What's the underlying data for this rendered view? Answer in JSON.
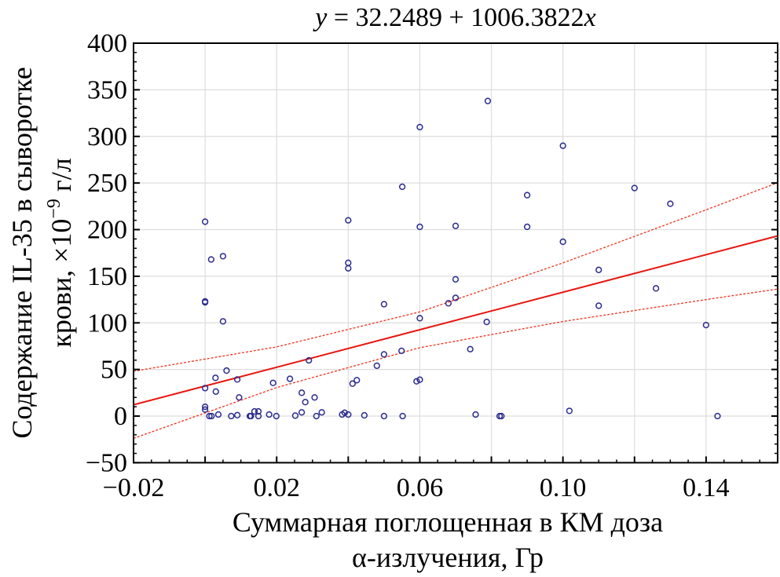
{
  "chart_data": {
    "type": "scatter",
    "title": "y = 32.2489 + 1006.3822x",
    "title_parts": {
      "y": "y",
      "eq": " = 32.2489 + 1006.3822",
      "x": "x"
    },
    "xlabel_lines": [
      "Суммарная поглощенная в КМ доза",
      "α-излучения, Гр"
    ],
    "ylabel_lines": [
      "Содержание IL-35 в сыворотке",
      "крови, ×10",
      "−9",
      " г/л"
    ],
    "xlim": [
      -0.02,
      0.16
    ],
    "ylim": [
      -50,
      400
    ],
    "xticks": [
      -0.02,
      0.02,
      0.06,
      0.1,
      0.14
    ],
    "xtick_labels": [
      "−0.02",
      "0.02",
      "0.06",
      "0.10",
      "0.14"
    ],
    "yticks": [
      -50,
      0,
      50,
      100,
      150,
      200,
      250,
      300,
      350,
      400
    ],
    "ytick_labels": [
      "−50",
      "0",
      "50",
      "100",
      "150",
      "200",
      "250",
      "300",
      "350",
      "400"
    ],
    "grid": true,
    "colors": {
      "points": "#2b2b8f",
      "fit": "#e8150f",
      "ci": "#f0321e",
      "grid": "#dddddd"
    },
    "regression": {
      "intercept": 32.2489,
      "slope": 1006.3822
    },
    "confidence_band": {
      "x": [
        -0.02,
        0.02,
        0.06,
        0.1,
        0.14,
        0.16
      ],
      "upper": [
        48.1,
        74.2,
        111.8,
        164.3,
        221.2,
        250.3
      ],
      "lower": [
        -23.9,
        30.6,
        73.4,
        101.5,
        125.0,
        136.3
      ]
    },
    "points": [
      [
        0.0,
        208.5
      ],
      [
        0.0017,
        168
      ],
      [
        0.005,
        171.5
      ],
      [
        0.04,
        210
      ],
      [
        0.04,
        164.4
      ],
      [
        0.04,
        158.5
      ],
      [
        0.06,
        203
      ],
      [
        0.07,
        204
      ],
      [
        0.0,
        123
      ],
      [
        0.0,
        122
      ],
      [
        0.005,
        101.6
      ],
      [
        0.07,
        146.7
      ],
      [
        0.05,
        120
      ],
      [
        0.068,
        121
      ],
      [
        0.07,
        126.8
      ],
      [
        0.06,
        105
      ],
      [
        0.029,
        59.8
      ],
      [
        0.05,
        66.2
      ],
      [
        0.0549,
        70
      ],
      [
        0.048,
        54
      ],
      [
        0.006,
        48.8
      ],
      [
        0.0029,
        41
      ],
      [
        0.009,
        39.3
      ],
      [
        0.0,
        30
      ],
      [
        0.003,
        26.3
      ],
      [
        0.019,
        35.6
      ],
      [
        0.0237,
        40
      ],
      [
        0.0095,
        20
      ],
      [
        0.027,
        25
      ],
      [
        0.028,
        15
      ],
      [
        0.0306,
        20
      ],
      [
        0.0591,
        37.3
      ],
      [
        0.06,
        39
      ],
      [
        0.0412,
        34.8
      ],
      [
        0.0424,
        38.5
      ],
      [
        0.0,
        10
      ],
      [
        0.0,
        7
      ],
      [
        0.0012,
        0
      ],
      [
        0.0018,
        0
      ],
      [
        0.0037,
        1.7
      ],
      [
        0.0073,
        0
      ],
      [
        0.009,
        1
      ],
      [
        0.0125,
        0
      ],
      [
        0.0128,
        0
      ],
      [
        0.0138,
        5
      ],
      [
        0.0149,
        5
      ],
      [
        0.0149,
        0
      ],
      [
        0.0179,
        1.7
      ],
      [
        0.0199,
        0
      ],
      [
        0.0252,
        0.5
      ],
      [
        0.027,
        4
      ],
      [
        0.0311,
        0
      ],
      [
        0.0326,
        4
      ],
      [
        0.0383,
        1.7
      ],
      [
        0.039,
        3.6
      ],
      [
        0.04,
        1.7
      ],
      [
        0.0445,
        0.8
      ],
      [
        0.05,
        0
      ],
      [
        0.0552,
        0
      ],
      [
        0.079,
        338
      ],
      [
        0.06,
        310
      ],
      [
        0.1,
        290
      ],
      [
        0.0551,
        246
      ],
      [
        0.09,
        237
      ],
      [
        0.12,
        244.6
      ],
      [
        0.13,
        227.8
      ],
      [
        0.1,
        187
      ],
      [
        0.09,
        203
      ],
      [
        0.11,
        156.8
      ],
      [
        0.126,
        137
      ],
      [
        0.11,
        118.4
      ],
      [
        0.0787,
        101
      ],
      [
        0.14,
        97.6
      ],
      [
        0.0741,
        71.8
      ],
      [
        0.1018,
        5.6
      ],
      [
        0.0756,
        1.7
      ],
      [
        0.0823,
        0
      ],
      [
        0.0828,
        0
      ],
      [
        0.1432,
        0
      ]
    ]
  }
}
